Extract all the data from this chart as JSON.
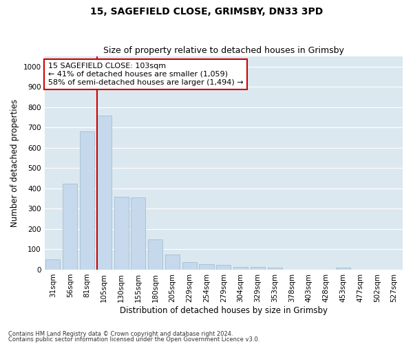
{
  "title1": "15, SAGEFIELD CLOSE, GRIMSBY, DN33 3PD",
  "title2": "Size of property relative to detached houses in Grimsby",
  "xlabel": "Distribution of detached houses by size in Grimsby",
  "ylabel": "Number of detached properties",
  "footnote1": "Contains HM Land Registry data © Crown copyright and database right 2024.",
  "footnote2": "Contains public sector information licensed under the Open Government Licence v3.0.",
  "annotation_title": "15 SAGEFIELD CLOSE: 103sqm",
  "annotation_line2": "← 41% of detached houses are smaller (1,059)",
  "annotation_line3": "58% of semi-detached houses are larger (1,494) →",
  "bar_color": "#c6d9ec",
  "bar_edge_color": "#9ab5d0",
  "marker_line_color": "#cc0000",
  "annotation_box_edge_color": "#cc0000",
  "grid_color": "#ffffff",
  "background_color": "#dce8f0",
  "fig_background_color": "#ffffff",
  "categories": [
    "31sqm",
    "56sqm",
    "81sqm",
    "105sqm",
    "130sqm",
    "155sqm",
    "180sqm",
    "205sqm",
    "229sqm",
    "254sqm",
    "279sqm",
    "304sqm",
    "329sqm",
    "353sqm",
    "378sqm",
    "403sqm",
    "428sqm",
    "453sqm",
    "477sqm",
    "502sqm",
    "527sqm"
  ],
  "values": [
    50,
    425,
    680,
    760,
    360,
    355,
    150,
    75,
    38,
    28,
    25,
    15,
    12,
    10,
    0,
    0,
    0,
    10,
    0,
    0,
    0
  ],
  "ylim": [
    0,
    1050
  ],
  "yticks": [
    0,
    100,
    200,
    300,
    400,
    500,
    600,
    700,
    800,
    900,
    1000
  ],
  "property_bar_index": 3,
  "title_fontsize": 10,
  "subtitle_fontsize": 9,
  "label_fontsize": 8.5,
  "tick_fontsize": 7.5,
  "annotation_fontsize": 8,
  "footnote_fontsize": 6
}
